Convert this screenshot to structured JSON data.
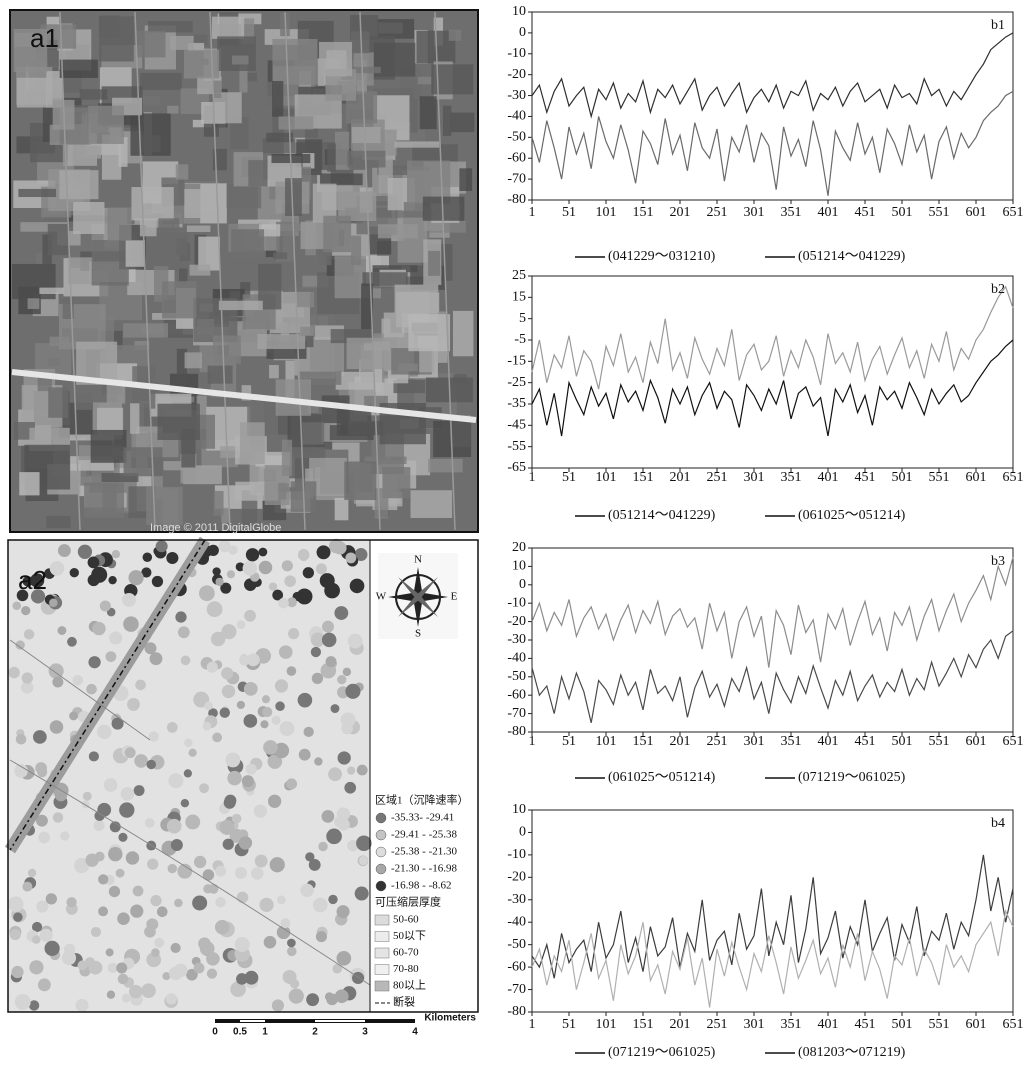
{
  "chart_data": [
    {
      "type": "line",
      "label": "b1",
      "xlim": [
        1,
        651
      ],
      "ylim": [
        -80,
        10
      ],
      "xticks": [
        1,
        51,
        101,
        151,
        201,
        251,
        301,
        351,
        401,
        451,
        501,
        551,
        601,
        651
      ],
      "yticks": [
        -80,
        -70,
        -60,
        -50,
        -40,
        -30,
        -20,
        -10,
        0,
        10
      ],
      "x": [
        1,
        11,
        21,
        31,
        41,
        51,
        61,
        71,
        81,
        91,
        101,
        111,
        121,
        131,
        141,
        151,
        161,
        171,
        181,
        191,
        201,
        211,
        221,
        231,
        241,
        251,
        261,
        271,
        281,
        291,
        301,
        311,
        321,
        331,
        341,
        351,
        361,
        371,
        381,
        391,
        401,
        411,
        421,
        431,
        441,
        451,
        461,
        471,
        481,
        491,
        501,
        511,
        521,
        531,
        541,
        551,
        561,
        571,
        581,
        591,
        601,
        611,
        621,
        631,
        641,
        651
      ],
      "series": [
        {
          "name": "(041229～031210)",
          "color": "#2e2e2e",
          "values": [
            -30,
            -25,
            -38,
            -28,
            -22,
            -35,
            -30,
            -26,
            -40,
            -27,
            -32,
            -24,
            -36,
            -29,
            -33,
            -23,
            -38,
            -27,
            -31,
            -25,
            -34,
            -28,
            -22,
            -37,
            -30,
            -26,
            -35,
            -29,
            -24,
            -38,
            -31,
            -27,
            -33,
            -25,
            -36,
            -28,
            -30,
            -23,
            -37,
            -29,
            -32,
            -26,
            -35,
            -28,
            -24,
            -33,
            -30,
            -27,
            -36,
            -25,
            -31,
            -29,
            -34,
            -22,
            -30,
            -27,
            -35,
            -28,
            -32,
            -26,
            -20,
            -15,
            -8,
            -5,
            -2,
            0
          ]
        },
        {
          "name": "(051214～041229)",
          "color": "#6a6a6a",
          "values": [
            -50,
            -62,
            -42,
            -55,
            -70,
            -45,
            -58,
            -48,
            -65,
            -40,
            -52,
            -60,
            -44,
            -56,
            -72,
            -47,
            -53,
            -63,
            -41,
            -58,
            -49,
            -66,
            -43,
            -55,
            -60,
            -46,
            -71,
            -50,
            -57,
            -44,
            -62,
            -48,
            -54,
            -75,
            -45,
            -59,
            -51,
            -64,
            -42,
            -56,
            -78,
            -47,
            -55,
            -61,
            -43,
            -58,
            -50,
            -67,
            -46,
            -53,
            -63,
            -44,
            -57,
            -49,
            -70,
            -52,
            -45,
            -60,
            -48,
            -55,
            -50,
            -42,
            -38,
            -35,
            -30,
            -28
          ]
        }
      ]
    },
    {
      "type": "line",
      "label": "b2",
      "xlim": [
        1,
        651
      ],
      "ylim": [
        -65,
        25
      ],
      "xticks": [
        1,
        51,
        101,
        151,
        201,
        251,
        301,
        351,
        401,
        451,
        501,
        551,
        601,
        651
      ],
      "yticks": [
        -65,
        -55,
        -45,
        -35,
        -25,
        -15,
        -5,
        5,
        15,
        25
      ],
      "x": [
        1,
        11,
        21,
        31,
        41,
        51,
        61,
        71,
        81,
        91,
        101,
        111,
        121,
        131,
        141,
        151,
        161,
        171,
        181,
        191,
        201,
        211,
        221,
        231,
        241,
        251,
        261,
        271,
        281,
        291,
        301,
        311,
        321,
        331,
        341,
        351,
        361,
        371,
        381,
        391,
        401,
        411,
        421,
        431,
        441,
        451,
        461,
        471,
        481,
        491,
        501,
        511,
        521,
        531,
        541,
        551,
        561,
        571,
        581,
        591,
        601,
        611,
        621,
        631,
        641,
        651
      ],
      "series": [
        {
          "name": "(051214～041229)",
          "color": "#111111",
          "values": [
            -35,
            -28,
            -45,
            -30,
            -50,
            -25,
            -33,
            -40,
            -27,
            -36,
            -30,
            -42,
            -26,
            -34,
            -29,
            -38,
            -24,
            -32,
            -44,
            -28,
            -35,
            -27,
            -40,
            -31,
            -25,
            -37,
            -29,
            -33,
            -46,
            -26,
            -31,
            -38,
            -28,
            -35,
            -24,
            -42,
            -30,
            -27,
            -36,
            -32,
            -50,
            -28,
            -34,
            -26,
            -39,
            -31,
            -45,
            -27,
            -33,
            -29,
            -37,
            -25,
            -32,
            -40,
            -28,
            -35,
            -30,
            -26,
            -34,
            -31,
            -25,
            -20,
            -15,
            -12,
            -8,
            -5
          ]
        },
        {
          "name": "(061025～051214)",
          "color": "#9a9a9a",
          "values": [
            -20,
            -5,
            -25,
            -12,
            -18,
            -3,
            -22,
            -10,
            -15,
            -28,
            -8,
            -17,
            -2,
            -20,
            -13,
            -25,
            -6,
            -16,
            5,
            -19,
            -11,
            -23,
            -4,
            -14,
            -21,
            -9,
            -17,
            0,
            -24,
            -12,
            -7,
            -19,
            -15,
            -3,
            -22,
            -10,
            -18,
            -5,
            -13,
            -26,
            -2,
            -16,
            -11,
            -20,
            -6,
            -24,
            -14,
            -8,
            -21,
            -12,
            -4,
            -18,
            -10,
            -23,
            -7,
            -15,
            -1,
            -19,
            -9,
            -14,
            -5,
            0,
            8,
            15,
            20,
            10
          ]
        }
      ]
    },
    {
      "type": "line",
      "label": "b3",
      "xlim": [
        1,
        651
      ],
      "ylim": [
        -80,
        20
      ],
      "xticks": [
        1,
        51,
        101,
        151,
        201,
        251,
        301,
        351,
        401,
        451,
        501,
        551,
        601,
        651
      ],
      "yticks": [
        -80,
        -70,
        -60,
        -50,
        -40,
        -30,
        -20,
        -10,
        0,
        10,
        20
      ],
      "x": [
        1,
        11,
        21,
        31,
        41,
        51,
        61,
        71,
        81,
        91,
        101,
        111,
        121,
        131,
        141,
        151,
        161,
        171,
        181,
        191,
        201,
        211,
        221,
        231,
        241,
        251,
        261,
        271,
        281,
        291,
        301,
        311,
        321,
        331,
        341,
        351,
        361,
        371,
        381,
        391,
        401,
        411,
        421,
        431,
        441,
        451,
        461,
        471,
        481,
        491,
        501,
        511,
        521,
        531,
        541,
        551,
        561,
        571,
        581,
        591,
        601,
        611,
        621,
        631,
        641,
        651
      ],
      "series": [
        {
          "name": "(061025～051214)",
          "color": "#4a4a4a",
          "values": [
            -45,
            -60,
            -55,
            -70,
            -50,
            -62,
            -48,
            -58,
            -75,
            -52,
            -57,
            -65,
            -49,
            -60,
            -53,
            -68,
            -46,
            -59,
            -55,
            -63,
            -50,
            -72,
            -56,
            -47,
            -61,
            -54,
            -66,
            -51,
            -58,
            -45,
            -62,
            -53,
            -70,
            -48,
            -57,
            -64,
            -50,
            -59,
            -44,
            -56,
            -67,
            -52,
            -60,
            -47,
            -63,
            -55,
            -49,
            -61,
            -53,
            -58,
            -46,
            -60,
            -51,
            -57,
            -42,
            -55,
            -48,
            -40,
            -50,
            -38,
            -45,
            -35,
            -30,
            -40,
            -28,
            -25
          ]
        },
        {
          "name": "(071219～061025)",
          "color": "#8c8c8c",
          "values": [
            -20,
            -10,
            -25,
            -15,
            -22,
            -8,
            -28,
            -18,
            -12,
            -24,
            -16,
            -30,
            -19,
            -11,
            -26,
            -14,
            -21,
            -9,
            -27,
            -17,
            -13,
            -23,
            -18,
            -35,
            -10,
            -25,
            -15,
            -40,
            -20,
            -12,
            -28,
            -17,
            -45,
            -14,
            -22,
            -38,
            -11,
            -26,
            -19,
            -42,
            -16,
            -24,
            -13,
            -33,
            -20,
            -9,
            -27,
            -18,
            -36,
            -15,
            -22,
            -12,
            -30,
            -17,
            -8,
            -25,
            -14,
            -5,
            -20,
            -10,
            -3,
            5,
            -8,
            10,
            0,
            15
          ]
        }
      ]
    },
    {
      "type": "line",
      "label": "b4",
      "xlim": [
        1,
        651
      ],
      "ylim": [
        -80,
        10
      ],
      "xticks": [
        1,
        51,
        101,
        151,
        201,
        251,
        301,
        351,
        401,
        451,
        501,
        551,
        601,
        651
      ],
      "yticks": [
        -80,
        -70,
        -60,
        -50,
        -40,
        -30,
        -20,
        -10,
        0,
        10
      ],
      "x": [
        1,
        11,
        21,
        31,
        41,
        51,
        61,
        71,
        81,
        91,
        101,
        111,
        121,
        131,
        141,
        151,
        161,
        171,
        181,
        191,
        201,
        211,
        221,
        231,
        241,
        251,
        261,
        271,
        281,
        291,
        301,
        311,
        321,
        331,
        341,
        351,
        361,
        371,
        381,
        391,
        401,
        411,
        421,
        431,
        441,
        451,
        461,
        471,
        481,
        491,
        501,
        511,
        521,
        531,
        541,
        551,
        561,
        571,
        581,
        591,
        601,
        611,
        621,
        631,
        641,
        651
      ],
      "series": [
        {
          "name": "(071219～061025)",
          "color": "#3c3c3c",
          "values": [
            -55,
            -60,
            -50,
            -65,
            -45,
            -58,
            -52,
            -48,
            -62,
            -40,
            -56,
            -50,
            -35,
            -58,
            -47,
            -62,
            -42,
            -55,
            -51,
            -38,
            -60,
            -45,
            -53,
            -30,
            -57,
            -48,
            -44,
            -59,
            -36,
            -52,
            -46,
            -25,
            -55,
            -40,
            -50,
            -28,
            -58,
            -43,
            -20,
            -54,
            -47,
            -35,
            -56,
            -42,
            -50,
            -30,
            -53,
            -45,
            -38,
            -57,
            -41,
            -49,
            -33,
            -55,
            -44,
            -48,
            -36,
            -52,
            -40,
            -46,
            -30,
            -10,
            -35,
            -20,
            -40,
            -25
          ]
        },
        {
          "name": "(081203～071219)",
          "color": "#b0b0b0",
          "values": [
            -60,
            -52,
            -68,
            -55,
            -62,
            -48,
            -70,
            -58,
            -45,
            -65,
            -57,
            -75,
            -50,
            -63,
            -55,
            -40,
            -66,
            -59,
            -72,
            -53,
            -61,
            -47,
            -68,
            -56,
            -78,
            -52,
            -64,
            -49,
            -60,
            -70,
            -54,
            -62,
            -46,
            -58,
            -72,
            -51,
            -65,
            -57,
            -48,
            -63,
            -56,
            -69,
            -50,
            -60,
            -45,
            -66,
            -53,
            -61,
            -74,
            -55,
            -59,
            -47,
            -64,
            -52,
            -58,
            -68,
            -50,
            -60,
            -55,
            -62,
            -50,
            -45,
            -40,
            -55,
            -35,
            -42
          ]
        }
      ]
    }
  ],
  "a1": {
    "label": "a1",
    "credit": "Image © 2011 DigitalGlobe"
  },
  "a2": {
    "label": "a2",
    "compass": {
      "n": "N",
      "s": "S",
      "e": "E",
      "w": "W"
    },
    "legend": {
      "title": "区域1（沉降速率）",
      "items": [
        {
          "label": "-35.33- -29.41",
          "color": "#777777"
        },
        {
          "label": "-29.41 - -25.38",
          "color": "#c4c4c4"
        },
        {
          "label": "-25.38 - -21.30",
          "color": "#dddddd"
        },
        {
          "label": "-21.30 - -16.98",
          "color": "#a8a8a8"
        },
        {
          "label": "-16.98 - -8.62",
          "color": "#333333"
        }
      ],
      "subtitle": "可压缩层厚度",
      "layers": [
        {
          "label": "50-60",
          "color": "#dcdcdc"
        },
        {
          "label": "50以下",
          "color": "#ececec"
        },
        {
          "label": "60-70",
          "color": "#e4e4e4"
        },
        {
          "label": "70-80",
          "color": "#f0f0f0"
        },
        {
          "label": "80以上",
          "color": "#b8b8b8"
        }
      ],
      "fault": "断裂"
    },
    "scale": {
      "ticks": [
        0,
        0.5,
        1,
        2,
        3,
        4
      ],
      "unit": "Kilometers"
    }
  }
}
